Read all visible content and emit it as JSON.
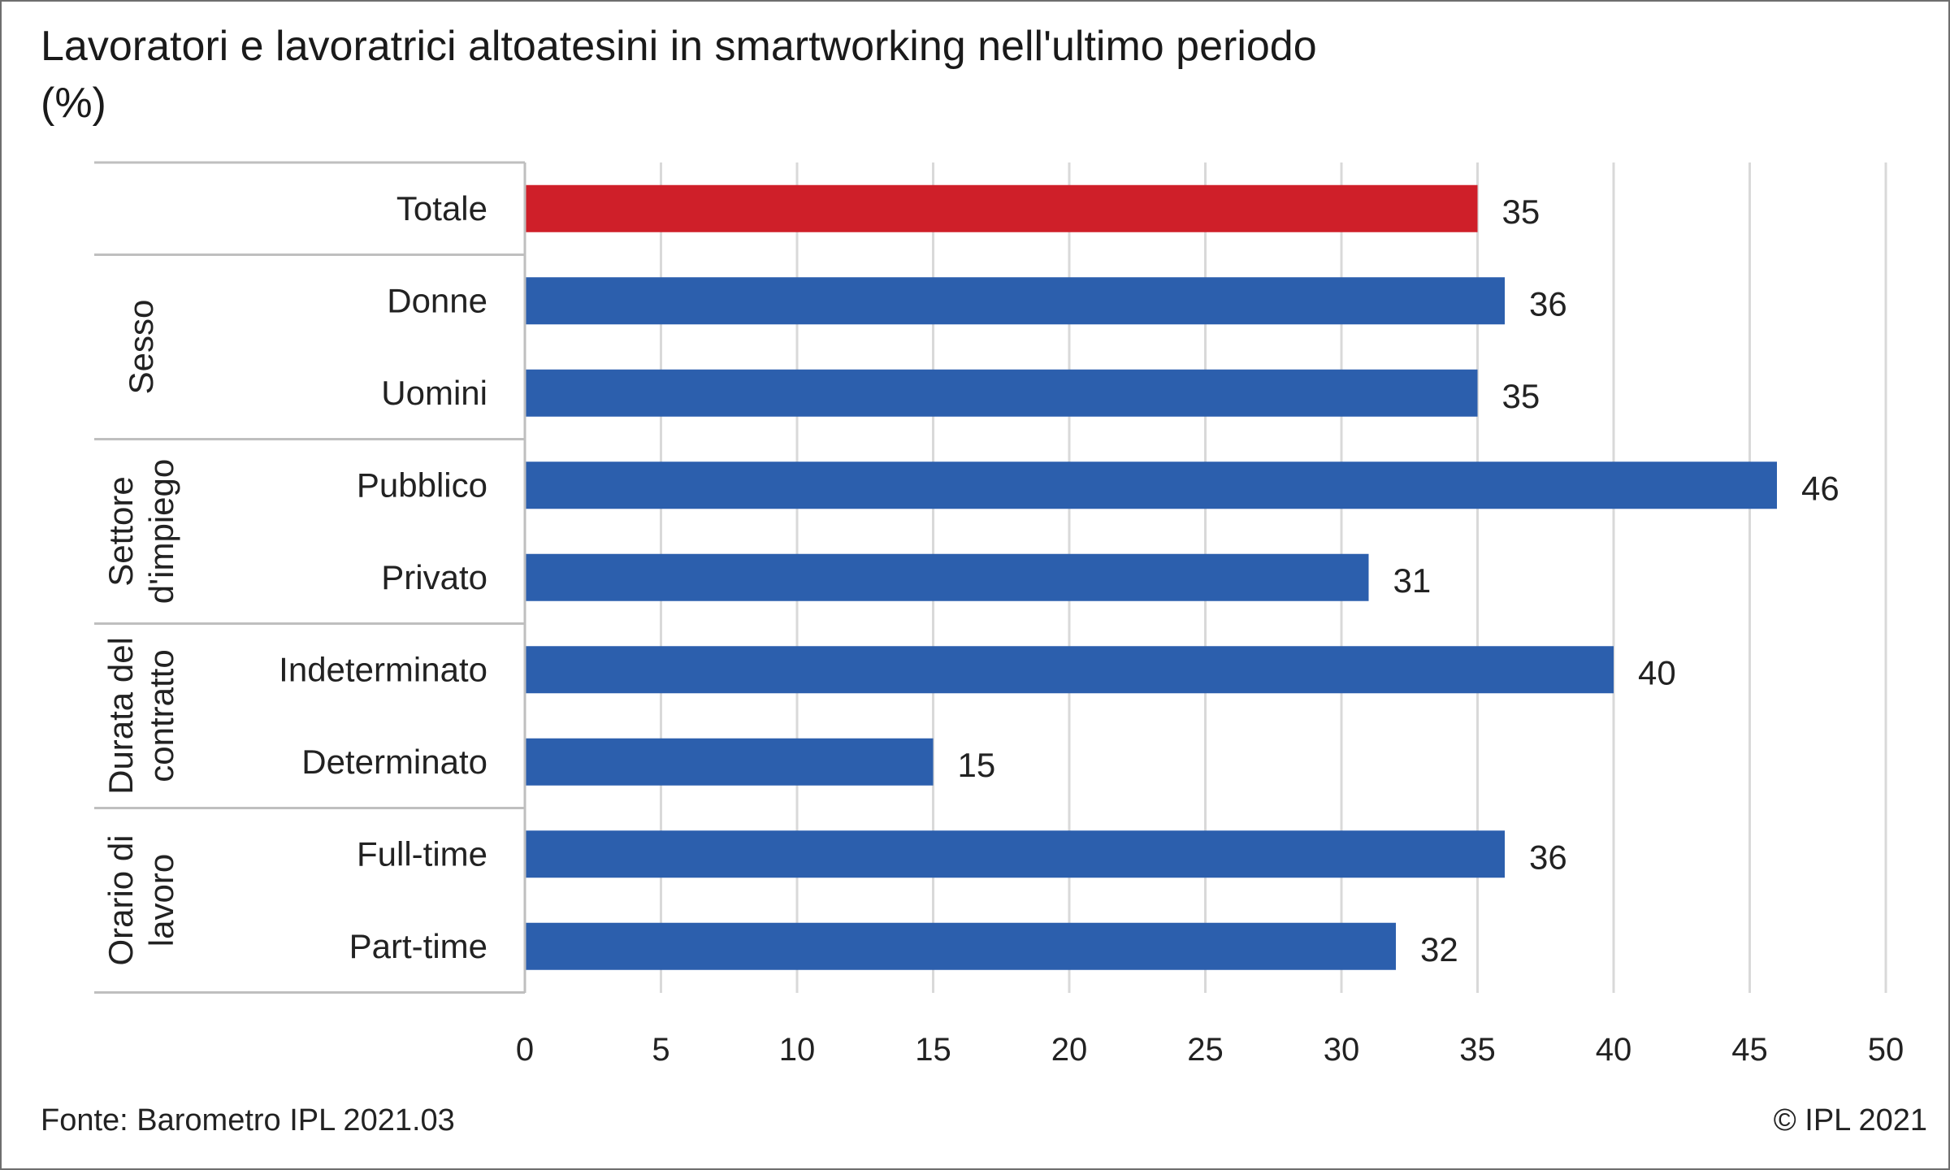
{
  "title_line1": "Lavoratori e lavoratrici altoatesini in smartworking nell'ultimo periodo",
  "title_line2": "(%)",
  "source": "Fonte: Barometro IPL 2021.03",
  "copyright": "© IPL 2021",
  "chart_data": {
    "type": "bar",
    "orientation": "horizontal",
    "xlim": [
      0,
      50
    ],
    "x_ticks": [
      0,
      5,
      10,
      15,
      20,
      25,
      30,
      35,
      40,
      45,
      50
    ],
    "grid": true,
    "colors": {
      "highlight": "#cf1f29",
      "default": "#2c5fad",
      "grid": "#d9d9d9",
      "separator": "#bfbfbf"
    },
    "groups": [
      {
        "name": "",
        "label_lines": [],
        "items": [
          {
            "label": "Totale",
            "value": 35,
            "highlight": true
          }
        ]
      },
      {
        "name": "Sesso",
        "label_lines": [
          "Sesso"
        ],
        "items": [
          {
            "label": "Donne",
            "value": 36
          },
          {
            "label": "Uomini",
            "value": 35
          }
        ]
      },
      {
        "name": "Settore d'impiego",
        "label_lines": [
          "Settore",
          "d'impiego"
        ],
        "items": [
          {
            "label": "Pubblico",
            "value": 46
          },
          {
            "label": "Privato",
            "value": 31
          }
        ]
      },
      {
        "name": "Durata del contratto",
        "label_lines": [
          "Durata del",
          "contratto"
        ],
        "items": [
          {
            "label": "Indeterminato",
            "value": 40
          },
          {
            "label": "Determinato",
            "value": 15
          }
        ]
      },
      {
        "name": "Orario di lavoro",
        "label_lines": [
          "Orario di",
          "lavoro"
        ],
        "items": [
          {
            "label": "Full-time",
            "value": 36
          },
          {
            "label": "Part-time",
            "value": 32
          }
        ]
      }
    ]
  }
}
